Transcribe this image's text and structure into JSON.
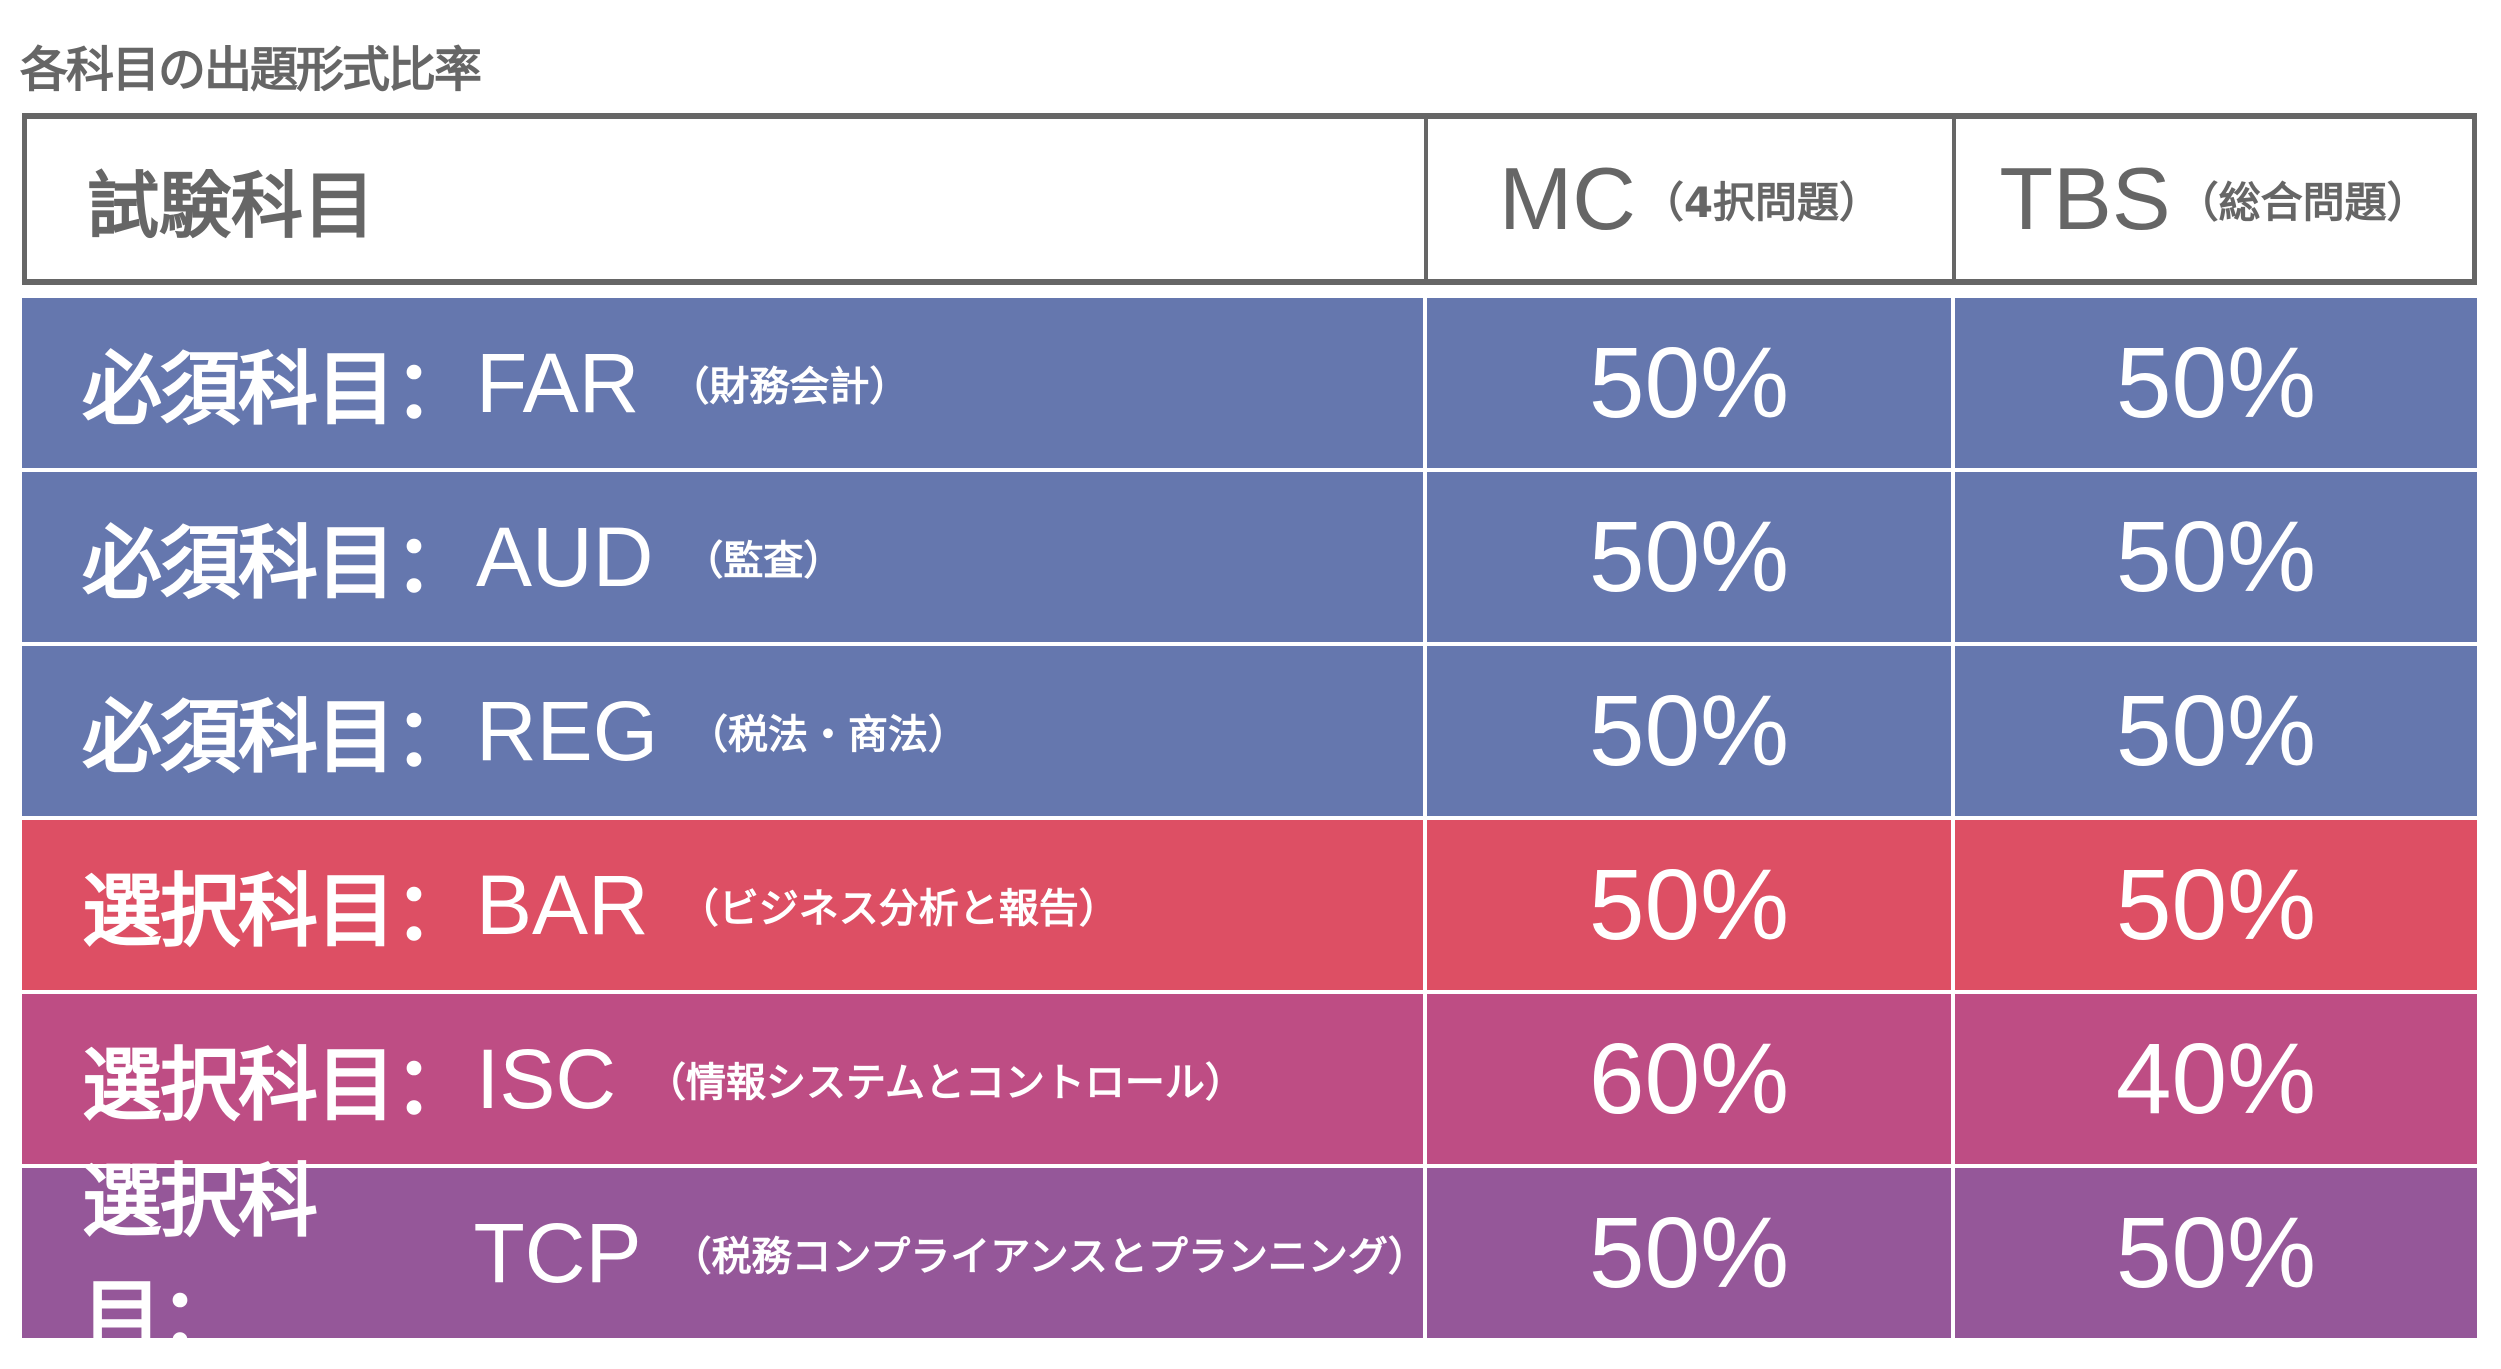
{
  "title": "各科目の出題形式比率",
  "header": {
    "subject": "試験科目",
    "mc": "MC",
    "mc_note": "（4択問題）",
    "tbs": "TBS",
    "tbs_note": "（総合問題）"
  },
  "rows": [
    {
      "category": "必須科目：",
      "code": "FAR",
      "desc": "（財務会計）",
      "mc": "50%",
      "tbs": "50%",
      "color": "#6577ae"
    },
    {
      "category": "必須科目：",
      "code": "AUD",
      "desc": "（監査）",
      "mc": "50%",
      "tbs": "50%",
      "color": "#6577ae"
    },
    {
      "category": "必須科目：",
      "code": "REG",
      "desc": "（税法・商法）",
      "mc": "50%",
      "tbs": "50%",
      "color": "#6577ae"
    },
    {
      "category": "選択科目：",
      "code": "BAR",
      "desc": "（ビジネス分析と報告）",
      "mc": "50%",
      "tbs": "50%",
      "color": "#dd4f64"
    },
    {
      "category": "選択科目：",
      "code": "ISC",
      "desc": "（情報システムとコントロール）",
      "mc": "60%",
      "tbs": "40%",
      "color": "#be4d84"
    },
    {
      "category": "選択科目：",
      "code": "TCP",
      "desc": "（税務コンプライアンスとプランニング）",
      "mc": "50%",
      "tbs": "50%",
      "color": "#955799"
    }
  ]
}
